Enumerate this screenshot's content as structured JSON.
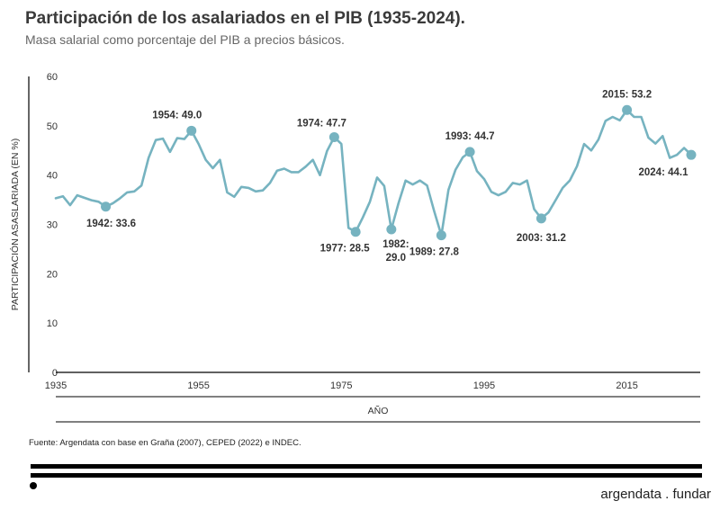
{
  "header": {
    "title": "Participación de los asalariados en el PIB (1935-2024).",
    "subtitle": "Masa salarial como porcentaje del PIB a precios básicos."
  },
  "footer": {
    "source": "Fuente: Argendata con base en Graña (2007), CEPED (2022) e INDEC.",
    "brand": "argendata . fundar"
  },
  "colors": {
    "line": "#76b3c0",
    "axis": "#000000",
    "text": "#333333"
  },
  "chart_data": {
    "type": "line",
    "title": "Participación de los asalariados en el PIB (1935-2024).",
    "subtitle": "Masa salarial como porcentaje del PIB a precios básicos.",
    "xlabel": "AÑO",
    "ylabel": "PARTICIPACIÓN ASASLARIADA (EN %)",
    "xlim": [
      1935,
      2024
    ],
    "ylim": [
      0,
      60
    ],
    "x_ticks": [
      1935,
      1955,
      1975,
      1995,
      2015
    ],
    "y_ticks": [
      0,
      10,
      20,
      30,
      40,
      50,
      60
    ],
    "grid": false,
    "series": [
      {
        "name": "Participación asalariada",
        "x": [
          1935,
          1936,
          1937,
          1938,
          1939,
          1940,
          1941,
          1942,
          1943,
          1944,
          1945,
          1946,
          1947,
          1948,
          1949,
          1950,
          1951,
          1952,
          1953,
          1954,
          1955,
          1956,
          1957,
          1958,
          1959,
          1960,
          1961,
          1962,
          1963,
          1964,
          1965,
          1966,
          1967,
          1968,
          1969,
          1970,
          1971,
          1972,
          1973,
          1974,
          1975,
          1976,
          1977,
          1978,
          1979,
          1980,
          1981,
          1982,
          1983,
          1984,
          1985,
          1986,
          1987,
          1988,
          1989,
          1990,
          1991,
          1992,
          1993,
          1994,
          1995,
          1996,
          1997,
          1998,
          1999,
          2000,
          2001,
          2002,
          2003,
          2004,
          2005,
          2006,
          2007,
          2008,
          2009,
          2010,
          2011,
          2012,
          2013,
          2014,
          2015,
          2016,
          2017,
          2018,
          2019,
          2020,
          2021,
          2022,
          2023,
          2024
        ],
        "values": [
          35.3,
          35.7,
          33.9,
          35.9,
          35.4,
          34.9,
          34.6,
          33.6,
          34.3,
          35.3,
          36.5,
          36.7,
          37.9,
          43.5,
          47.1,
          47.4,
          44.7,
          47.5,
          47.3,
          49.0,
          46.3,
          43.1,
          41.4,
          43.1,
          36.5,
          35.6,
          37.6,
          37.4,
          36.7,
          36.9,
          38.4,
          40.9,
          41.3,
          40.6,
          40.6,
          41.7,
          43.1,
          40.0,
          44.9,
          47.7,
          46.3,
          29.3,
          28.5,
          31.4,
          34.6,
          39.5,
          37.8,
          29.0,
          34.3,
          38.9,
          38.1,
          38.9,
          37.9,
          32.7,
          27.8,
          37.0,
          41.1,
          43.6,
          44.7,
          40.8,
          39.2,
          36.6,
          35.9,
          36.6,
          38.4,
          38.1,
          38.9,
          33.1,
          31.2,
          32.4,
          34.9,
          37.4,
          38.9,
          41.8,
          46.3,
          45.0,
          47.2,
          51.0,
          51.8,
          51.1,
          53.2,
          51.8,
          51.8,
          47.6,
          46.4,
          47.9,
          43.5,
          44.1,
          45.5,
          44.1
        ]
      }
    ],
    "annotations": [
      {
        "year": 1942,
        "value": 33.6,
        "label": "1942:  33.6"
      },
      {
        "year": 1954,
        "value": 49.0,
        "label": "1954:  49.0"
      },
      {
        "year": 1974,
        "value": 47.7,
        "label": "1974:  47.7"
      },
      {
        "year": 1977,
        "value": 28.5,
        "label": "1977:  28.5"
      },
      {
        "year": 1982,
        "value": 29.0,
        "label": "1982:",
        "label2": "29.0"
      },
      {
        "year": 1989,
        "value": 27.8,
        "label": "1989:  27.8"
      },
      {
        "year": 1993,
        "value": 44.7,
        "label": "1993:  44.7"
      },
      {
        "year": 2003,
        "value": 31.2,
        "label": "2003:  31.2"
      },
      {
        "year": 2015,
        "value": 53.2,
        "label": "2015:  53.2"
      },
      {
        "year": 2024,
        "value": 44.1,
        "label": "2024:  44.1"
      }
    ]
  }
}
